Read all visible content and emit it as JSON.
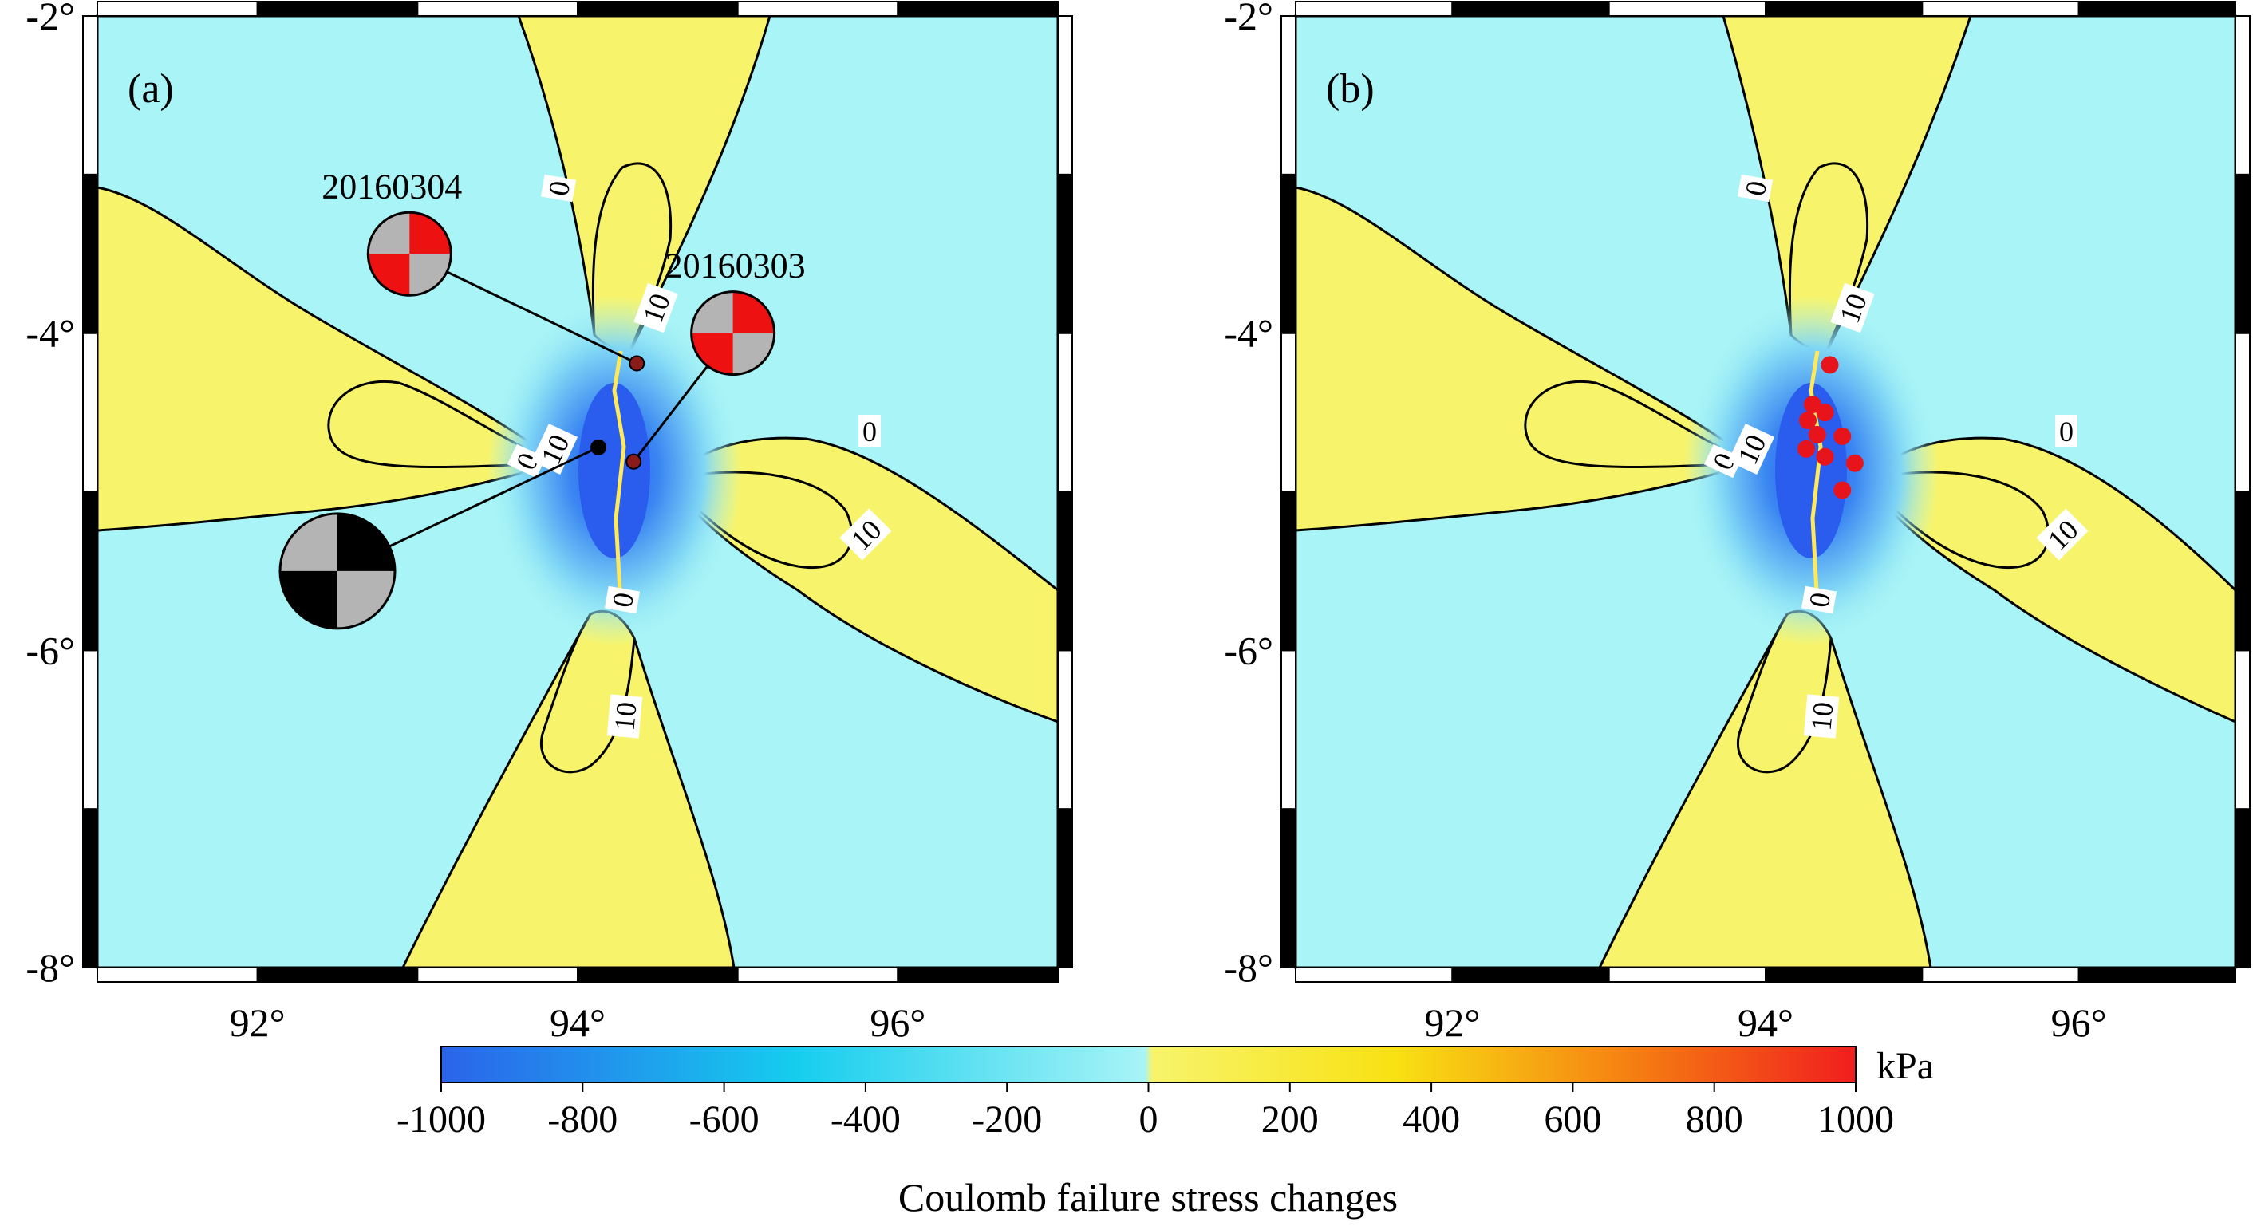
{
  "map": {
    "extent": {
      "lon": [
        91,
        97
      ],
      "lat": [
        -8,
        -2
      ]
    },
    "lon_ticks": [
      {
        "value": 92,
        "label": "92°"
      },
      {
        "value": 94,
        "label": "94°"
      },
      {
        "value": 96,
        "label": "96°"
      }
    ],
    "lat_ticks": [
      {
        "value": -2,
        "label": "-2°"
      },
      {
        "value": -4,
        "label": "-4°"
      },
      {
        "value": -6,
        "label": "-6°"
      },
      {
        "value": -8,
        "label": "-8°"
      }
    ],
    "colors": {
      "background": "#a8f4f6",
      "positive": "#f7f46c",
      "deep_negative": "#2e62f0",
      "frame_black": "#000000",
      "frame_white": "#ffffff",
      "aftershock": "#e8141c",
      "beachball_compress_main": "#000000",
      "beachball_compress_aftershock": "#ee1111",
      "beachball_dilate": "#b4b4b4"
    },
    "panels": [
      {
        "label": "(a)",
        "contour_labels": [
          "0",
          "10",
          "0",
          "10",
          "0",
          "10",
          "0",
          "10"
        ],
        "events": [
          {
            "label": "",
            "lon": 94.13,
            "lat": -4.72,
            "marker_color": "#000000",
            "beachball": {
              "lon": 92.5,
              "lat": -5.5,
              "compress_color": "#000000"
            }
          },
          {
            "label": "20160304",
            "lon": 94.37,
            "lat": -4.19,
            "marker_color": "#8b1a1a",
            "beachball": {
              "lon": 92.95,
              "lat": -3.5,
              "compress_color": "#ee1111"
            }
          },
          {
            "label": "20160303",
            "lon": 94.35,
            "lat": -4.81,
            "marker_color": "#8b1a1a",
            "beachball": {
              "lon": 94.97,
              "lat": -4.0,
              "compress_color": "#ee1111"
            }
          }
        ]
      },
      {
        "label": "(b)",
        "contour_labels": [
          "0",
          "10",
          "0",
          "10",
          "0",
          "10",
          "0",
          "10"
        ],
        "aftershocks": [
          {
            "lon": 94.41,
            "lat": -4.2
          },
          {
            "lon": 94.3,
            "lat": -4.45
          },
          {
            "lon": 94.38,
            "lat": -4.5
          },
          {
            "lon": 94.27,
            "lat": -4.55
          },
          {
            "lon": 94.33,
            "lat": -4.64
          },
          {
            "lon": 94.49,
            "lat": -4.65
          },
          {
            "lon": 94.26,
            "lat": -4.73
          },
          {
            "lon": 94.38,
            "lat": -4.78
          },
          {
            "lon": 94.57,
            "lat": -4.82
          },
          {
            "lon": 94.49,
            "lat": -4.99
          }
        ]
      }
    ]
  },
  "colorbar": {
    "min": -1000,
    "max": 1000,
    "ticks": [
      "-1000",
      "-800",
      "-600",
      "-400",
      "-200",
      "0",
      "200",
      "400",
      "600",
      "800",
      "1000"
    ],
    "unit": "kPa",
    "label": "Coulomb failure stress changes",
    "stops": [
      {
        "value": -1000,
        "color": "#2b63ea"
      },
      {
        "value": -500,
        "color": "#15cdee"
      },
      {
        "value": -5,
        "color": "#a8f4f6"
      },
      {
        "value": 5,
        "color": "#f7f46c"
      },
      {
        "value": 350,
        "color": "#f8e112"
      },
      {
        "value": 700,
        "color": "#f57a12"
      },
      {
        "value": 1000,
        "color": "#f01e1e"
      }
    ]
  }
}
